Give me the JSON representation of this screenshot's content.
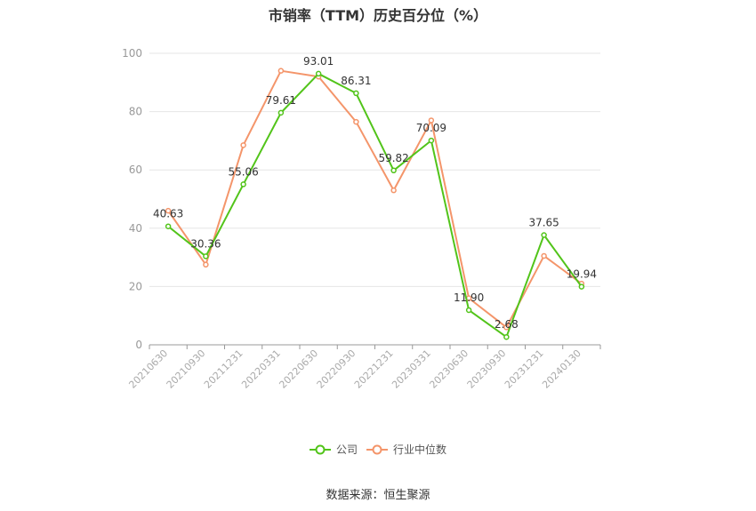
{
  "source": "数据来源：恒生聚源",
  "chart_data": {
    "type": "line",
    "title": "市销率（TTM）历史百分位（%）",
    "xlabel": "",
    "ylabel": "",
    "ylim": [
      0,
      100
    ],
    "yticks": [
      0,
      20,
      40,
      60,
      80,
      100
    ],
    "grid": true,
    "legend_position": "bottom",
    "categories": [
      "20210630",
      "20210930",
      "20211231",
      "20220331",
      "20220630",
      "20220930",
      "20221231",
      "20230331",
      "20230630",
      "20230930",
      "20231231",
      "20240130"
    ],
    "series": [
      {
        "name": "公司",
        "color": "#52c41a",
        "values": [
          40.63,
          30.36,
          55.06,
          79.61,
          93.01,
          86.31,
          59.82,
          70.09,
          11.9,
          2.68,
          37.65,
          19.94
        ],
        "labels": [
          "40.63",
          "30.36",
          "55.06",
          "79.61",
          "93.01",
          "86.31",
          "59.82",
          "70.09",
          "11.90",
          "2.68",
          "37.65",
          "19.94"
        ]
      },
      {
        "name": "行业中位数",
        "color": "#f4956a",
        "values": [
          46.0,
          27.5,
          68.5,
          94.0,
          92.0,
          76.5,
          53.0,
          77.0,
          16.0,
          6.0,
          30.5,
          21.0
        ]
      }
    ]
  }
}
